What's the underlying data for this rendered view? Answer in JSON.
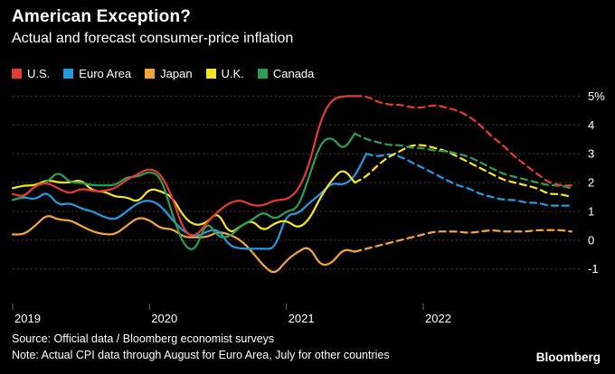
{
  "header": {
    "title": "American Exception?",
    "subtitle": "Actual and forecast consumer-price inflation"
  },
  "footer": {
    "source": "Source: Official data / Bloomberg economist surveys",
    "note": "Note: Actual CPI data through August for Euro Area, July for other countries",
    "brand": "Bloomberg"
  },
  "colors": {
    "background": "#000000",
    "text": "#ffffff",
    "gridline": "#3d3d3d"
  },
  "chart_data": {
    "type": "line",
    "title": "American Exception?",
    "subtitle": "Actual and forecast consumer-price inflation",
    "unit": "percent, year-over-year consumer-price inflation",
    "x_start": 2019,
    "x_step": 0.0833333,
    "xlim": [
      2019,
      2023.15
    ],
    "ylim": [
      -2.2,
      5.2
    ],
    "grid": "horizontal-dotted",
    "legend_position": "top-left",
    "forecast_style": "dashed",
    "draw_order": [
      2,
      1,
      3,
      4,
      0
    ],
    "x_ticks": [
      {
        "value": 2019,
        "label": "2019"
      },
      {
        "value": 2020,
        "label": "2020"
      },
      {
        "value": 2021,
        "label": "2021"
      },
      {
        "value": 2022,
        "label": "2022"
      }
    ],
    "y_ticks": [
      {
        "value": 5,
        "label": "5%"
      },
      {
        "value": 4,
        "label": "4"
      },
      {
        "value": 3,
        "label": "3"
      },
      {
        "value": 2,
        "label": "2"
      },
      {
        "value": 1,
        "label": "1"
      },
      {
        "value": 0,
        "label": "0"
      },
      {
        "value": -1,
        "label": "-1"
      }
    ],
    "series": [
      {
        "name": "U.S.",
        "color": "#e13b32",
        "forecast_from_index": 31,
        "values": [
          1.6,
          1.5,
          1.9,
          2.0,
          1.8,
          1.6,
          1.8,
          1.7,
          1.7,
          1.8,
          2.1,
          2.3,
          2.5,
          2.3,
          1.5,
          0.3,
          0.1,
          0.6,
          1.0,
          1.3,
          1.4,
          1.2,
          1.2,
          1.4,
          1.4,
          1.7,
          2.6,
          4.2,
          4.9,
          5.0,
          5.0,
          5.0,
          4.8,
          4.7,
          4.7,
          4.6,
          4.6,
          4.7,
          4.6,
          4.5,
          4.3,
          4.0,
          3.6,
          3.3,
          2.9,
          2.6,
          2.3,
          2.0,
          1.9,
          1.9
        ]
      },
      {
        "name": "Euro Area",
        "color": "#2599e0",
        "forecast_from_index": 32,
        "values": [
          1.4,
          1.5,
          1.4,
          1.7,
          1.2,
          1.3,
          1.1,
          1.0,
          0.8,
          0.7,
          1.0,
          1.3,
          1.4,
          1.2,
          0.7,
          0.3,
          0.1,
          0.3,
          0.4,
          -0.2,
          -0.3,
          -0.3,
          -0.3,
          -0.3,
          0.9,
          0.9,
          1.3,
          1.6,
          2.0,
          1.9,
          2.2,
          3.0,
          2.9,
          3.0,
          2.9,
          2.7,
          2.5,
          2.3,
          2.1,
          1.9,
          1.8,
          1.6,
          1.5,
          1.4,
          1.4,
          1.3,
          1.3,
          1.2,
          1.2,
          1.2
        ]
      },
      {
        "name": "Japan",
        "color": "#f2a33a",
        "forecast_from_index": 31,
        "values": [
          0.2,
          0.2,
          0.5,
          0.9,
          0.7,
          0.7,
          0.5,
          0.3,
          0.2,
          0.2,
          0.5,
          0.8,
          0.7,
          0.4,
          0.4,
          0.1,
          0.1,
          0.1,
          0.3,
          0.2,
          0.0,
          -0.4,
          -0.9,
          -1.2,
          -0.7,
          -0.4,
          -0.2,
          -0.9,
          -0.8,
          -0.3,
          -0.4,
          -0.3,
          -0.2,
          -0.1,
          0.0,
          0.1,
          0.2,
          0.3,
          0.3,
          0.3,
          0.25,
          0.3,
          0.35,
          0.3,
          0.3,
          0.3,
          0.35,
          0.35,
          0.35,
          0.3
        ]
      },
      {
        "name": "U.K.",
        "color": "#f3e227",
        "forecast_from_index": 31,
        "values": [
          1.8,
          1.9,
          1.9,
          2.1,
          2.0,
          2.0,
          2.1,
          1.7,
          1.7,
          1.5,
          1.5,
          1.3,
          1.8,
          1.7,
          1.5,
          0.8,
          0.5,
          0.6,
          1.0,
          0.2,
          0.5,
          0.7,
          0.3,
          0.6,
          0.7,
          0.4,
          0.7,
          1.5,
          2.1,
          2.5,
          2.0,
          2.2,
          2.6,
          2.9,
          3.1,
          3.3,
          3.3,
          3.2,
          3.1,
          2.9,
          2.7,
          2.5,
          2.3,
          2.1,
          2.0,
          1.9,
          1.8,
          1.6,
          1.6,
          1.5
        ]
      },
      {
        "name": "Canada",
        "color": "#2a9d57",
        "forecast_from_index": 31,
        "values": [
          1.4,
          1.5,
          1.9,
          2.0,
          2.4,
          2.0,
          2.0,
          1.9,
          1.9,
          1.9,
          2.2,
          2.2,
          2.4,
          2.2,
          0.9,
          -0.2,
          -0.4,
          0.7,
          0.1,
          0.1,
          0.5,
          0.7,
          1.0,
          0.7,
          1.0,
          1.1,
          2.2,
          3.4,
          3.6,
          3.1,
          3.7,
          3.5,
          3.4,
          3.3,
          3.3,
          3.2,
          3.2,
          3.1,
          3.1,
          3.0,
          2.9,
          2.7,
          2.5,
          2.3,
          2.2,
          2.1,
          2.0,
          1.9,
          1.9,
          1.8
        ]
      }
    ]
  }
}
